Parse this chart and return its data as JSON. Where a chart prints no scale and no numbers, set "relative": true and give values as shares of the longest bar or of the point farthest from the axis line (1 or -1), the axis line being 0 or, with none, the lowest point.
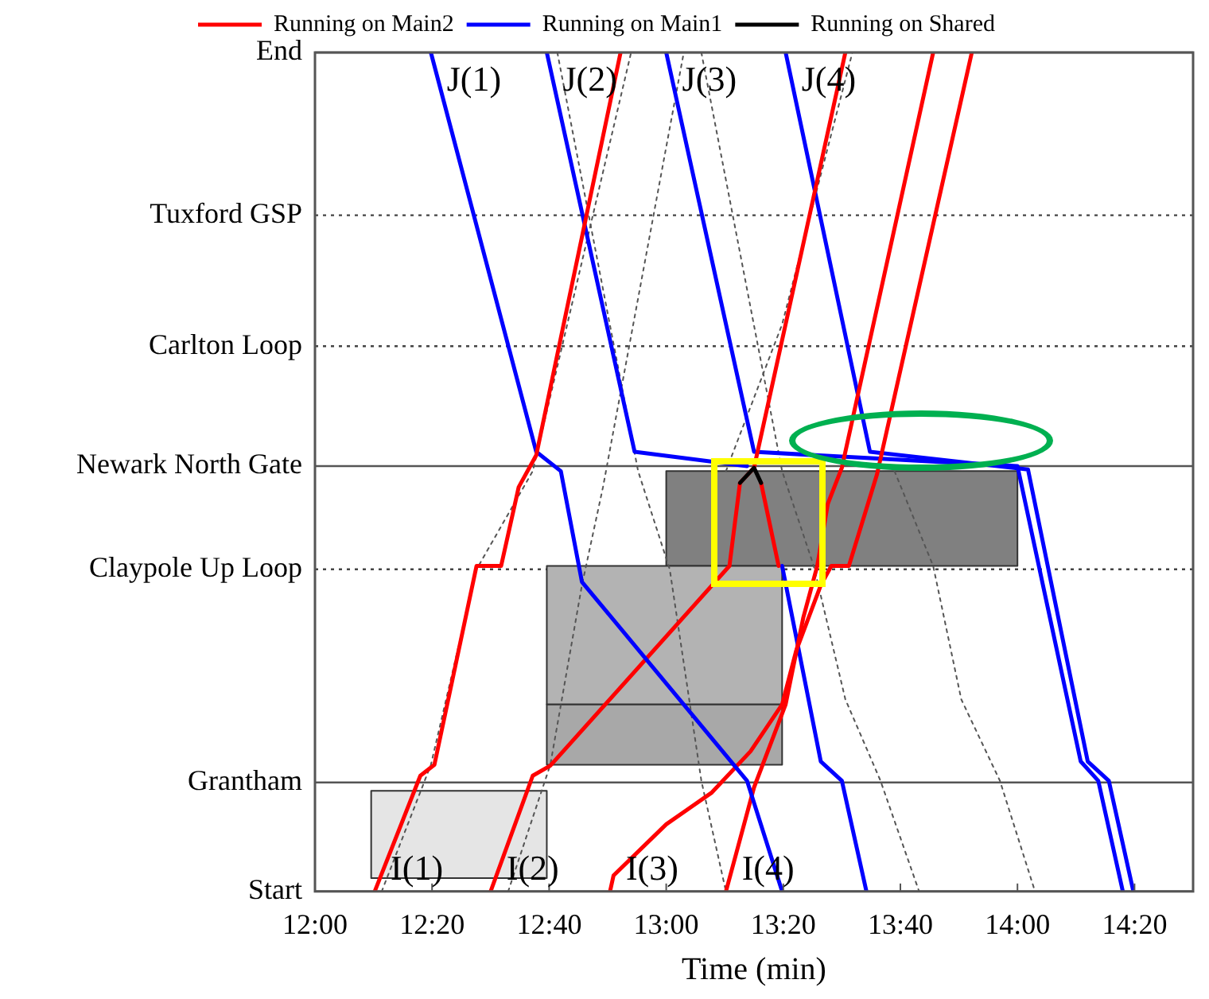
{
  "chart_data": {
    "type": "line",
    "xlabel": "Time (min)",
    "xlim": [
      12,
      14.5
    ],
    "xticks": [
      {
        "value": 12,
        "label": "12:00"
      },
      {
        "value": 12.3333,
        "label": "12:20"
      },
      {
        "value": 12.6667,
        "label": "12:40"
      },
      {
        "value": 13,
        "label": "13:00"
      },
      {
        "value": 13.3333,
        "label": "13:20"
      },
      {
        "value": 13.6667,
        "label": "13:40"
      },
      {
        "value": 14,
        "label": "14:00"
      },
      {
        "value": 14.3333,
        "label": "14:20"
      }
    ],
    "relative": true,
    "legend": "top",
    "marker": "none",
    "ref_lines": [
      {
        "axis": "y",
        "value": 0,
        "label": "Start",
        "color": "#555555",
        "line_style": "solid"
      },
      {
        "axis": "y",
        "value": 0.13,
        "label": "Grantham",
        "color": "#555555",
        "line_style": "solid"
      },
      {
        "axis": "y",
        "value": 0.384,
        "label": "Claypole Up Loop",
        "color": "#444444",
        "line_style": "dotted"
      },
      {
        "axis": "y",
        "value": 0.507,
        "label": "Newark North Gate",
        "color": "#555555",
        "line_style": "solid"
      },
      {
        "axis": "y",
        "value": 0.65,
        "label": "Carlton Loop",
        "color": "#444444",
        "line_style": "dotted"
      },
      {
        "axis": "y",
        "value": 0.806,
        "label": "Tuxford GSP",
        "color": "#444444",
        "line_style": "dotted"
      },
      {
        "axis": "y",
        "value": 1,
        "label": "End",
        "color": "#555555",
        "line_style": "solid"
      }
    ],
    "annotations": [
      {
        "text": "J(1)",
        "x": 12.33,
        "y": 1
      },
      {
        "text": "J(2)",
        "x": 12.66,
        "y": 1
      },
      {
        "text": "J(3)",
        "x": 13.0,
        "y": 1
      },
      {
        "text": "J(4)",
        "x": 13.34,
        "y": 1
      },
      {
        "text": "I(1)",
        "x": 12.17,
        "y": 0
      },
      {
        "text": "I(2)",
        "x": 12.5,
        "y": 0
      },
      {
        "text": "I(3)",
        "x": 12.84,
        "y": 0
      },
      {
        "text": "I(4)",
        "x": 13.17,
        "y": 0
      }
    ],
    "series": [
      {
        "type": "area",
        "color": "#e5e5e5",
        "x": [
          12.16,
          12.66,
          12.66,
          12.16,
          12.16
        ],
        "values": [
          0.12,
          0.12,
          0.016,
          0.016,
          0.12
        ]
      },
      {
        "type": "area",
        "color": "#b3b3b3",
        "x": [
          12.66,
          13.33,
          13.33,
          12.66,
          12.66
        ],
        "values": [
          0.388,
          0.388,
          0.223,
          0.223,
          0.388
        ]
      },
      {
        "type": "area",
        "color": "#a8a8a8",
        "x": [
          12.66,
          13.33,
          13.33,
          12.66,
          12.66
        ],
        "values": [
          0.223,
          0.223,
          0.151,
          0.151,
          0.223
        ]
      },
      {
        "type": "area",
        "color": "#808080",
        "x": [
          13.0,
          14.0,
          14.0,
          13.0,
          13.0
        ],
        "values": [
          0.501,
          0.501,
          0.388,
          0.388,
          0.501
        ]
      },
      {
        "name": "Running on Main2",
        "color": "#ff0000",
        "x": [
          12.17,
          12.3,
          12.34,
          12.46,
          12.53,
          12.58,
          12.63,
          12.87
        ],
        "values": [
          0,
          0.138,
          0.151,
          0.388,
          0.388,
          0.482,
          0.52,
          1
        ]
      },
      {
        "name": "Running on Main1",
        "color": "#0000ff",
        "x": [
          12.33,
          12.63,
          12.7,
          12.76,
          13.23,
          13.33
        ],
        "values": [
          1,
          0.524,
          0.501,
          0.369,
          0.132,
          0
        ]
      },
      {
        "name": "Running on Shared",
        "color": "#000000",
        "x": [
          13.21,
          13.25,
          13.27
        ],
        "values": [
          0.487,
          0.505,
          0.487
        ]
      },
      {
        "color": "#ff0000",
        "x": [
          12.5,
          12.62,
          12.67,
          13.18,
          13.21,
          13.25,
          13.51
        ],
        "values": [
          0,
          0.138,
          0.15,
          0.388,
          0.487,
          0.505,
          1
        ]
      },
      {
        "color": "#ff0000",
        "x": [
          13.27,
          13.32
        ],
        "values": [
          0.487,
          0.388
        ]
      },
      {
        "color": "#ff0000",
        "x": [
          12.84,
          12.85,
          13.0,
          13.13,
          13.24,
          13.33,
          13.37,
          13.44,
          13.47,
          13.52,
          13.6,
          13.87
        ],
        "values": [
          0,
          0.019,
          0.08,
          0.118,
          0.167,
          0.223,
          0.287,
          0.365,
          0.388,
          0.388,
          0.497,
          1
        ]
      },
      {
        "color": "#ff0000",
        "x": [
          13.17,
          13.25,
          13.34,
          13.39,
          13.43,
          13.46,
          13.5,
          13.76
        ],
        "values": [
          0,
          0.124,
          0.223,
          0.326,
          0.388,
          0.462,
          0.505,
          1
        ]
      },
      {
        "color": "#0000ff",
        "x": [
          12.66,
          12.91,
          13.23
        ],
        "values": [
          1,
          0.524,
          0.507
        ]
      },
      {
        "color": "#0000ff",
        "x": [
          13.0,
          13.25,
          14.0,
          14.18,
          14.23,
          14.3
        ],
        "values": [
          1,
          0.524,
          0.507,
          0.155,
          0.132,
          0
        ]
      },
      {
        "color": "#0000ff",
        "x": [
          13.34,
          13.58,
          14.03,
          14.2,
          14.26,
          14.33
        ],
        "values": [
          1,
          0.524,
          0.503,
          0.155,
          0.132,
          0
        ]
      },
      {
        "color": "#0000ff",
        "x": [
          13.33,
          13.44,
          13.5,
          13.57
        ],
        "values": [
          0.388,
          0.155,
          0.132,
          0
        ]
      },
      {
        "color": "#555555",
        "line_style": "dotted",
        "x": [
          12.19,
          12.33,
          12.46,
          12.62,
          12.9
        ],
        "values": [
          0,
          0.151,
          0.384,
          0.501,
          1
        ]
      },
      {
        "color": "#555555",
        "line_style": "dotted",
        "x": [
          12.55,
          12.67,
          12.76,
          12.82,
          13.05
        ],
        "values": [
          0,
          0.151,
          0.365,
          0.482,
          1
        ]
      },
      {
        "color": "#555555",
        "line_style": "dotted",
        "x": [
          12.69,
          12.92,
          13.01,
          13.1,
          13.17
        ],
        "values": [
          1,
          0.501,
          0.384,
          0.132,
          0
        ]
      },
      {
        "color": "#555555",
        "line_style": "dotted",
        "x": [
          13.1,
          13.33,
          13.42,
          13.51,
          13.61,
          13.72
        ],
        "values": [
          1,
          0.501,
          0.388,
          0.229,
          0.132,
          0
        ]
      },
      {
        "color": "#555555",
        "line_style": "dotted",
        "x": [
          13.65,
          13.76,
          13.84,
          13.95,
          14.05
        ],
        "values": [
          0.501,
          0.388,
          0.229,
          0.132,
          0
        ]
      },
      {
        "color": "#555555",
        "line_style": "dotted",
        "x": [
          13.17,
          13.33,
          13.53
        ],
        "values": [
          0.501,
          0.676,
          1
        ]
      }
    ]
  }
}
